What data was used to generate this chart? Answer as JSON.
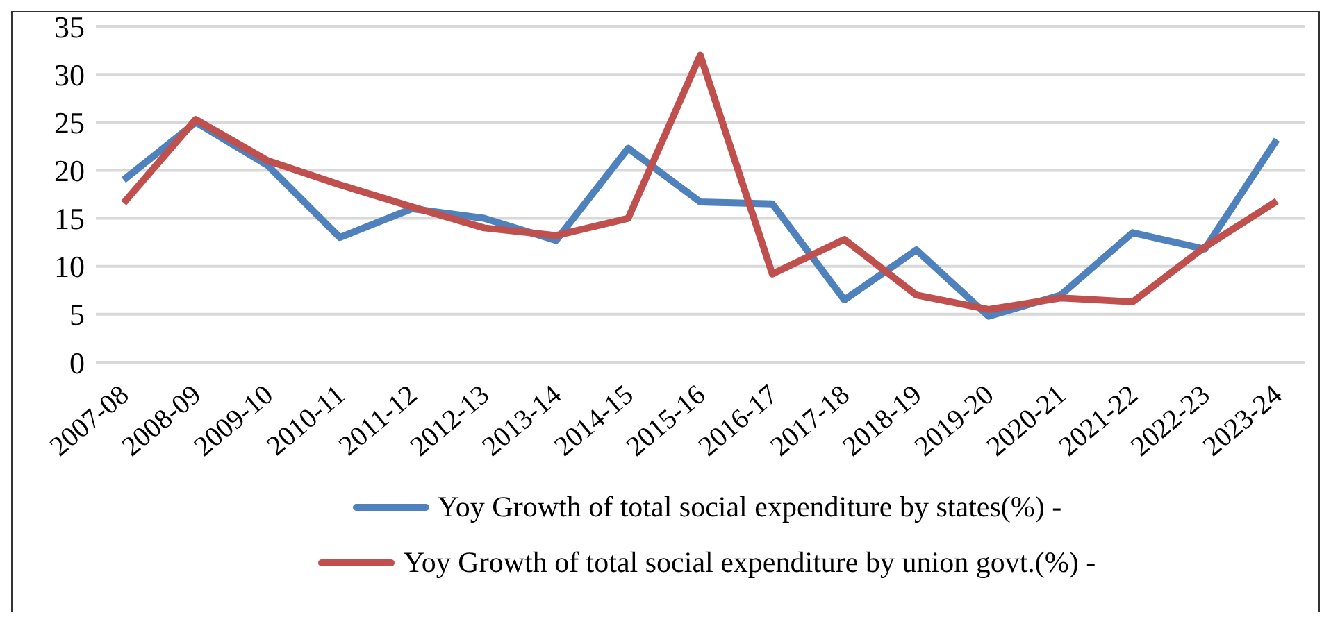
{
  "chart_data": {
    "type": "line",
    "categories": [
      "2007-08",
      "2008-09",
      "2009-10",
      "2010-11",
      "2011-12",
      "2012-13",
      "2013-14",
      "2014-15",
      "2015-16",
      "2016-17",
      "2017-18",
      "2018-19",
      "2019-20",
      "2020-21",
      "2021-22",
      "2022-23",
      "2023-24"
    ],
    "series": [
      {
        "name": "Yoy Growth of total social expenditure by states(%) -",
        "color": "#4f81bd",
        "values": [
          19,
          25,
          20.5,
          13,
          16,
          15,
          12.7,
          22.3,
          16.7,
          16.5,
          6.5,
          11.7,
          4.8,
          7,
          13.5,
          11.8,
          23.2
        ]
      },
      {
        "name": "Yoy Growth of total social expenditure by union govt.(%) -",
        "color": "#c0504d",
        "values": [
          16.6,
          25.3,
          21,
          18.5,
          16.2,
          14,
          13.2,
          15,
          32,
          9.2,
          12.8,
          7,
          5.5,
          6.7,
          6.3,
          12,
          16.8
        ]
      }
    ],
    "ylim": [
      0,
      35
    ],
    "yticks": [
      0,
      5,
      10,
      15,
      20,
      25,
      30,
      35
    ],
    "grid": "y",
    "legend": "bottom",
    "marker": "none",
    "line_style": "solid"
  }
}
